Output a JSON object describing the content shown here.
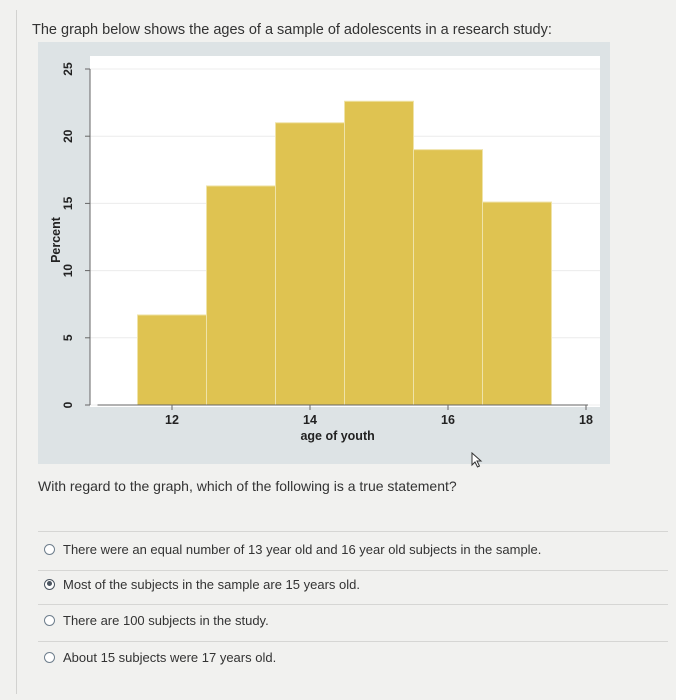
{
  "intro": "The graph below shows the ages of a sample of adolescents in a research study:",
  "question": "With regard to the graph, which of the following is a true statement?",
  "chart_data": {
    "type": "bar",
    "title": "",
    "xlabel": "age of youth",
    "ylabel": "Percent",
    "x_ticks": [
      12,
      14,
      16,
      18
    ],
    "y_ticks": [
      0,
      5,
      10,
      15,
      20,
      25
    ],
    "ylim": [
      0,
      25
    ],
    "bin_width": 1,
    "bins": [
      {
        "start": 11.5,
        "end": 12.5,
        "value": 6.7
      },
      {
        "start": 12.5,
        "end": 13.5,
        "value": 16.3
      },
      {
        "start": 13.5,
        "end": 14.5,
        "value": 21.0
      },
      {
        "start": 14.5,
        "end": 15.5,
        "value": 22.6
      },
      {
        "start": 15.5,
        "end": 16.5,
        "value": 19.0
      },
      {
        "start": 16.5,
        "end": 17.5,
        "value": 15.1
      }
    ],
    "grid": true,
    "bar_color": "#dfc351"
  },
  "options": [
    {
      "label": "There were an equal number of 13 year old and 16 year old subjects in the sample.",
      "selected": false
    },
    {
      "label": "Most of the subjects in the sample are 15 years old.",
      "selected": true
    },
    {
      "label": "There are 100 subjects in the study.",
      "selected": false
    },
    {
      "label": "About 15 subjects were 17 years old.",
      "selected": false
    }
  ]
}
